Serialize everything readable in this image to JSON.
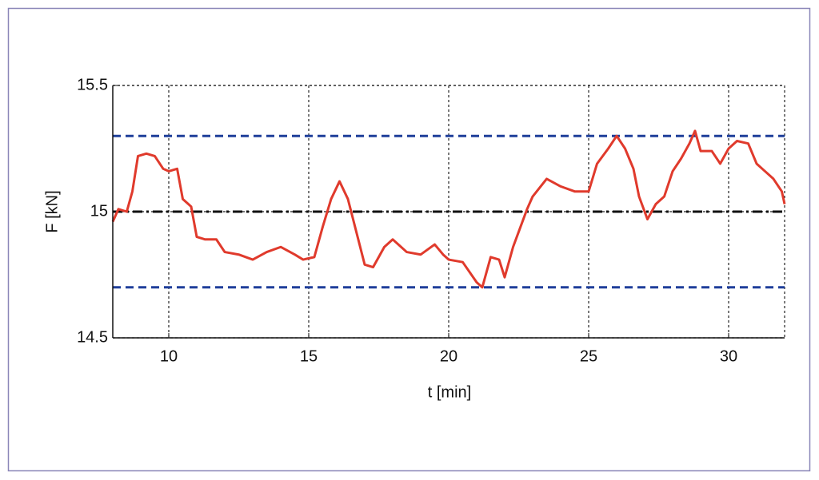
{
  "chart_data": {
    "type": "line",
    "x_label": "t [min]",
    "y_label": "F [kN]",
    "xlim": [
      8,
      32
    ],
    "ylim": [
      14.5,
      15.5
    ],
    "xticks": [
      10,
      15,
      20,
      25,
      30
    ],
    "yticks": [
      14.5,
      15,
      15.5
    ],
    "grid": true,
    "x": [
      8.0,
      8.2,
      8.5,
      8.7,
      8.9,
      9.2,
      9.5,
      9.8,
      10.0,
      10.3,
      10.5,
      10.8,
      11.0,
      11.3,
      11.7,
      12.0,
      12.5,
      13.0,
      13.5,
      14.0,
      14.5,
      14.8,
      15.2,
      15.5,
      15.8,
      16.1,
      16.4,
      16.7,
      17.0,
      17.3,
      17.7,
      18.0,
      18.5,
      19.0,
      19.5,
      19.8,
      20.0,
      20.5,
      21.0,
      21.2,
      21.5,
      21.8,
      22.0,
      22.3,
      22.6,
      22.8,
      23.0,
      23.5,
      24.0,
      24.5,
      25.0,
      25.3,
      25.7,
      26.0,
      26.3,
      26.6,
      26.8,
      27.1,
      27.4,
      27.7,
      28.0,
      28.3,
      28.6,
      28.8,
      29.0,
      29.4,
      29.7,
      30.0,
      30.3,
      30.7,
      31.0,
      31.3,
      31.6,
      31.9,
      32.0
    ],
    "series": [
      {
        "color": "#e03a2c",
        "values": [
          14.96,
          15.01,
          15.0,
          15.08,
          15.22,
          15.23,
          15.22,
          15.17,
          15.16,
          15.17,
          15.05,
          15.02,
          14.9,
          14.89,
          14.89,
          14.84,
          14.83,
          14.81,
          14.84,
          14.86,
          14.83,
          14.81,
          14.82,
          14.94,
          15.05,
          15.12,
          15.05,
          14.92,
          14.79,
          14.78,
          14.86,
          14.89,
          14.84,
          14.83,
          14.87,
          14.83,
          14.81,
          14.8,
          14.72,
          14.7,
          14.82,
          14.81,
          14.74,
          14.86,
          14.95,
          15.01,
          15.06,
          15.13,
          15.1,
          15.08,
          15.08,
          15.19,
          15.25,
          15.3,
          15.25,
          15.17,
          15.06,
          14.97,
          15.03,
          15.06,
          15.16,
          15.21,
          15.27,
          15.32,
          15.24,
          15.24,
          15.19,
          15.25,
          15.28,
          15.27,
          15.19,
          15.16,
          15.13,
          15.08,
          15.03
        ]
      }
    ],
    "hlines": [
      {
        "value": 15.3,
        "color": "#1f3f9a",
        "dash": "dashed"
      },
      {
        "value": 15,
        "color": "#111111",
        "dash": "dashdot"
      },
      {
        "value": 14.7,
        "color": "#1f3f9a",
        "dash": "dashed"
      }
    ]
  }
}
